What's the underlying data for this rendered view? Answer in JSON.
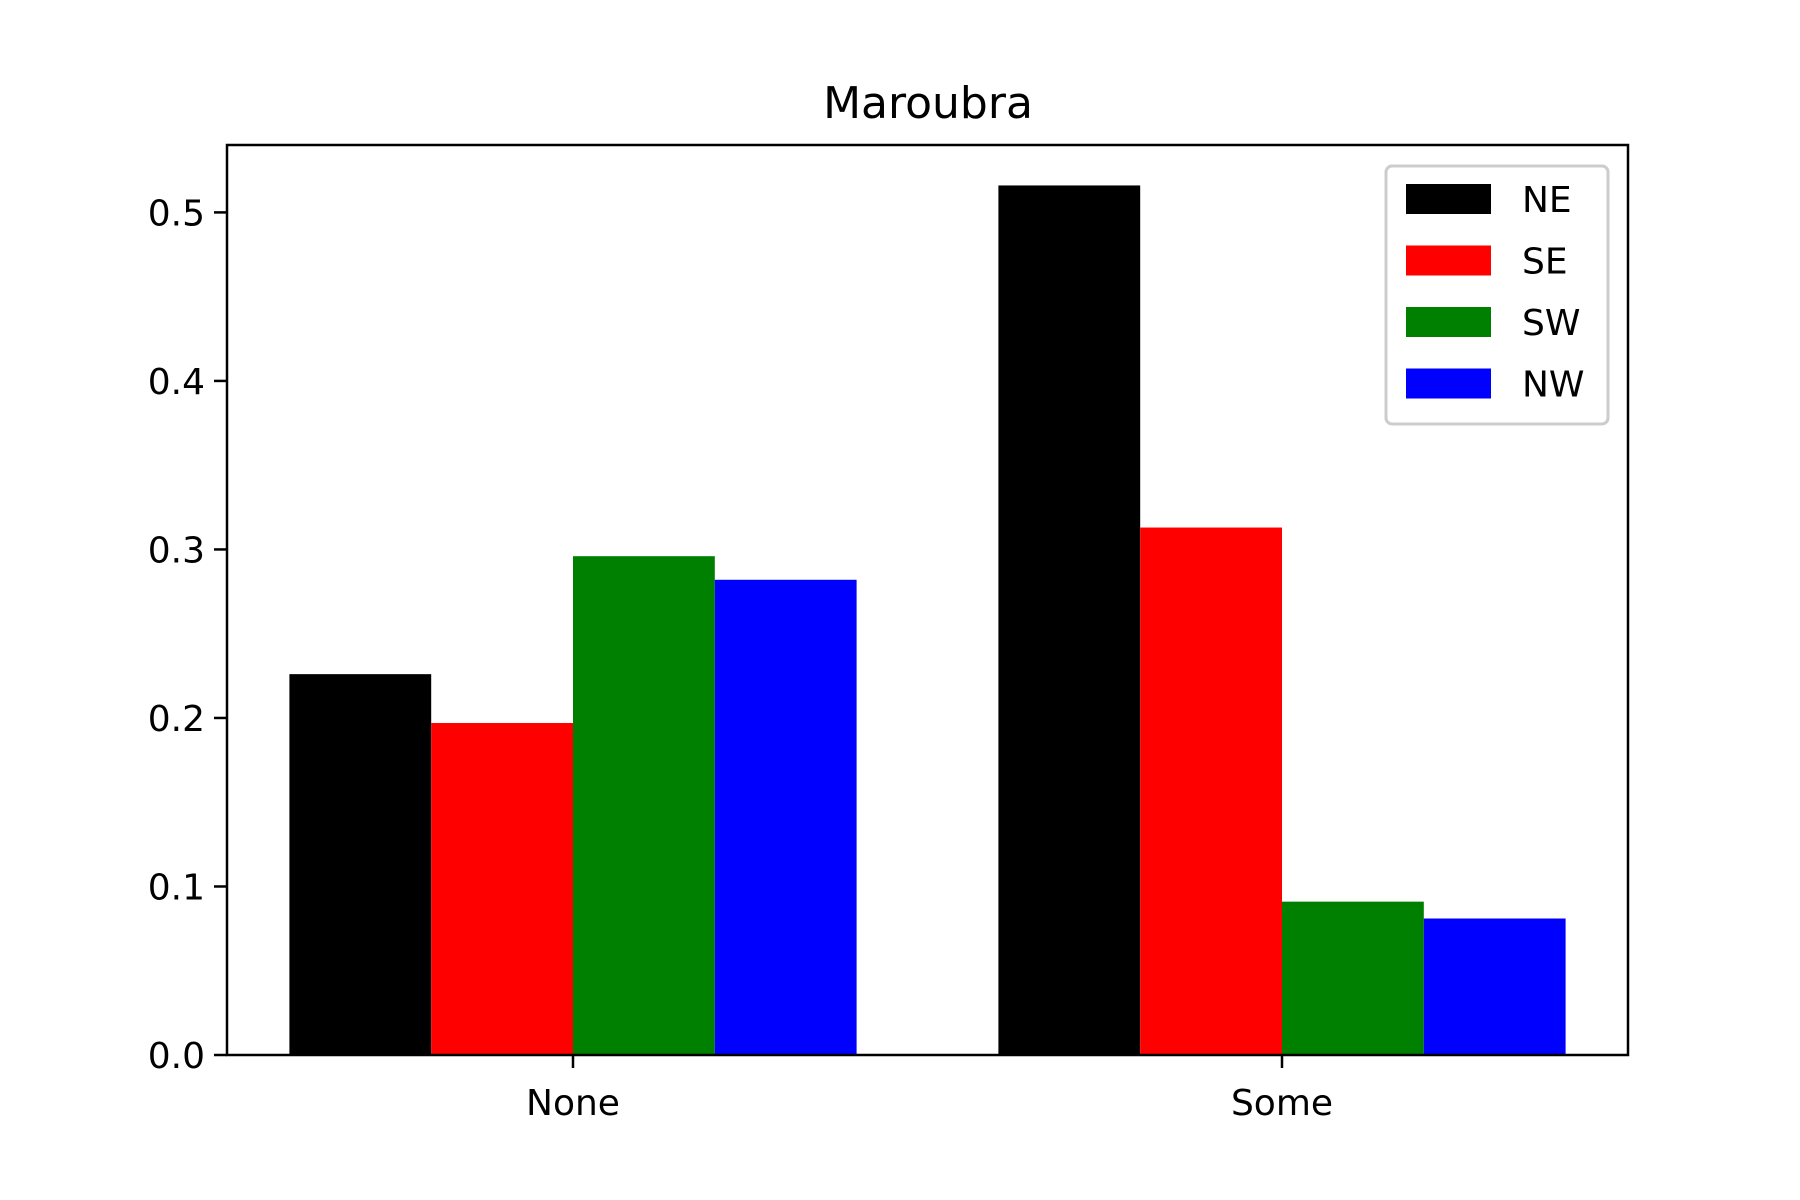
{
  "chart_data": {
    "type": "bar",
    "title": "Maroubra",
    "xlabel": "",
    "ylabel": "",
    "categories": [
      "None",
      "Some"
    ],
    "series": [
      {
        "name": "NE",
        "color": "#000000",
        "values": [
          0.226,
          0.516
        ]
      },
      {
        "name": "SE",
        "color": "#ff0000",
        "values": [
          0.197,
          0.313
        ]
      },
      {
        "name": "SW",
        "color": "#008000",
        "values": [
          0.296,
          0.091
        ]
      },
      {
        "name": "NW",
        "color": "#0000ff",
        "values": [
          0.282,
          0.081
        ]
      }
    ],
    "ylim": [
      0,
      0.54
    ],
    "yticks": [
      "0.0",
      "0.1",
      "0.2",
      "0.3",
      "0.4",
      "0.5"
    ],
    "grid": false,
    "legend_position": "top-right"
  }
}
